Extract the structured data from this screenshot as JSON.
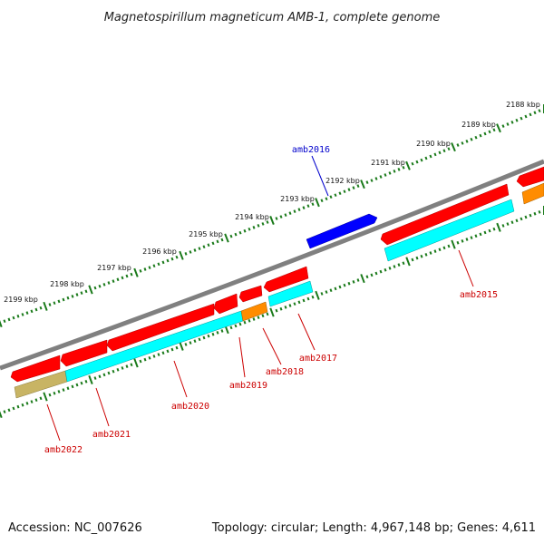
{
  "title": "Magnetospirillum magneticum AMB-1, complete genome",
  "footer": {
    "accession": "Accession: NC_007626",
    "topology": "Topology: circular; Length: 4,967,148 bp; Genes: 4,611"
  },
  "ruler": {
    "ticks": [
      "2188 kbp",
      "2189 kbp",
      "2190 kbp",
      "2191 kbp",
      "2192 kbp",
      "2193 kbp",
      "2194 kbp",
      "2195 kbp",
      "2196 kbp",
      "2197 kbp",
      "2198 kbp",
      "2199 kbp"
    ]
  },
  "gene_labels": [
    {
      "id": "amb2015",
      "text": "amb2015",
      "color": "#cc0000"
    },
    {
      "id": "amb2016",
      "text": "amb2016",
      "color": "#0000cc"
    },
    {
      "id": "amb2017",
      "text": "amb2017",
      "color": "#cc0000"
    },
    {
      "id": "amb2018",
      "text": "amb2018",
      "color": "#cc0000"
    },
    {
      "id": "amb2019",
      "text": "amb2019",
      "color": "#cc0000"
    },
    {
      "id": "amb2020",
      "text": "amb2020",
      "color": "#cc0000"
    },
    {
      "id": "amb2021",
      "text": "amb2021",
      "color": "#cc0000"
    },
    {
      "id": "amb2022",
      "text": "amb2022",
      "color": "#cc0000"
    }
  ],
  "colors": {
    "cds": "#ff0000",
    "cds_reverse": "#0000ff",
    "gene": "#00ffff",
    "trna_like": "#ff8c00",
    "pseudo": "#c8b464",
    "backbone": "#808080",
    "ruler": "#1a7a1a"
  }
}
